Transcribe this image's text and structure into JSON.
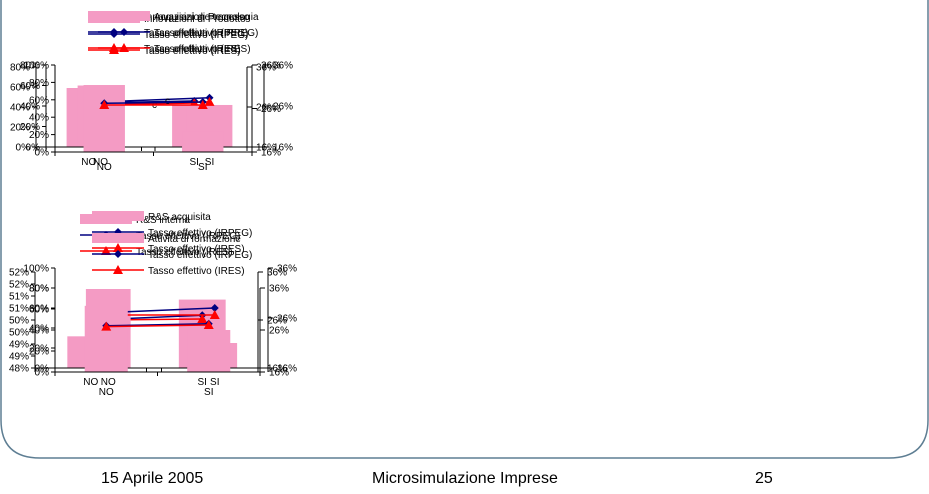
{
  "colors": {
    "bar": "#f49bc4",
    "irpeg": "#000080",
    "ires": "#ff0000",
    "frame": "#5e7e93"
  },
  "chart_data": [
    {
      "type": "bar",
      "categories": [
        "NO",
        "SI"
      ],
      "series": [
        {
          "name": "Innovazioni di Prodotto",
          "type": "bar",
          "axis": "left",
          "values": [
            0.59,
            0.42
          ]
        },
        {
          "name": "Tasso effettivo (IRPEG)",
          "type": "line",
          "axis": "right",
          "marker": "diamond",
          "values": [
            0.27,
            0.275
          ]
        },
        {
          "name": "Tasso effettivo (IRES)",
          "type": "line",
          "axis": "right",
          "marker": "triangle",
          "values": [
            0.264,
            0.27
          ]
        }
      ],
      "yleft": {
        "ylim": [
          0,
          0.8
        ],
        "ticks": [
          0,
          0.2,
          0.4,
          0.6,
          0.8
        ],
        "labels": [
          "0%",
          "20%",
          "40%",
          "60%",
          "80%"
        ]
      },
      "yright": {
        "ylim": [
          0.16,
          0.36
        ],
        "ticks": [
          0.16,
          0.26,
          0.36
        ],
        "labels": [
          "16%",
          "26%",
          "36%"
        ]
      },
      "annotation": "c"
    },
    {
      "type": "bar",
      "categories": [
        "NO",
        "SI"
      ],
      "series": [
        {
          "name": "Innovazioni di Processo",
          "type": "bar",
          "axis": "left",
          "values": [
            0.6,
            0.41
          ]
        },
        {
          "name": "Tasso effettivo (IRPEG)",
          "type": "line",
          "axis": "right",
          "marker": "diamond",
          "values": [
            0.27,
            0.28
          ]
        },
        {
          "name": "Tasso effettivo (IRES)",
          "type": "line",
          "axis": "right",
          "marker": "triangle",
          "values": [
            0.264,
            0.27
          ]
        }
      ],
      "yleft": {
        "ylim": [
          0,
          0.8
        ],
        "ticks": [
          0,
          0.2,
          0.4,
          0.6,
          0.8
        ],
        "labels": [
          "0%",
          "20%",
          "40%",
          "60%",
          "80%"
        ]
      },
      "yright": {
        "ylim": [
          0.16,
          0.36
        ],
        "ticks": [
          0.16,
          0.26,
          0.36
        ],
        "labels": [
          "16%",
          "26%",
          "36%"
        ]
      },
      "annotation": "c"
    },
    {
      "type": "bar",
      "categories": [
        "NO",
        "SI"
      ],
      "series": [
        {
          "name": "Acquisizione tecnologia",
          "type": "bar",
          "axis": "left",
          "values": [
            0.77,
            0.24
          ]
        },
        {
          "name": "Tasso effettivo (IRPEG)",
          "type": "line",
          "axis": "right",
          "marker": "diamond",
          "values": [
            0.272,
            0.275
          ]
        },
        {
          "name": "Tasso effettivo (IRES)",
          "type": "line",
          "axis": "right",
          "marker": "triangle",
          "values": [
            0.268,
            0.268
          ]
        }
      ],
      "yleft": {
        "ylim": [
          0,
          1
        ],
        "ticks": [
          0,
          0.2,
          0.4,
          0.6,
          0.8,
          1
        ],
        "labels": [
          "0%",
          "20%",
          "40%",
          "60%",
          "80%",
          "100%"
        ]
      },
      "yright": {
        "ylim": [
          0.16,
          0.36
        ],
        "ticks": [
          0.16,
          0.26,
          0.36
        ],
        "labels": [
          "16%",
          "26%",
          "36%"
        ]
      },
      "annotation": ""
    },
    {
      "type": "bar",
      "categories": [
        "NO",
        "SI"
      ],
      "series": [
        {
          "name": "R&S interna",
          "type": "bar",
          "axis": "left",
          "values": [
            0.4932,
            0.5085
          ]
        },
        {
          "name": "Tasso effettivo (IRPEG)",
          "type": "line",
          "axis": "right",
          "marker": "diamond",
          "values": [
            0.26,
            0.27
          ]
        },
        {
          "name": "Tasso effettivo (IRES)",
          "type": "line",
          "axis": "right",
          "marker": "triangle",
          "values": [
            0.26,
            0.262
          ]
        }
      ],
      "yleft": {
        "ylim": [
          0.48,
          0.52
        ],
        "ticks": [
          0.48,
          0.485,
          0.49,
          0.495,
          0.5,
          0.505,
          0.51,
          0.515,
          0.52
        ],
        "labels": [
          "48%",
          "49%",
          "49%",
          "50%",
          "50%",
          "51%",
          "51%",
          "52%",
          "52%"
        ]
      },
      "yright": {
        "ylim": [
          0.16,
          0.36
        ],
        "ticks": [
          0.16,
          0.26,
          0.36
        ],
        "labels": [
          "16%",
          "26%",
          "36%"
        ]
      },
      "annotation": ""
    },
    {
      "type": "bar",
      "categories": [
        "NO",
        "SI"
      ],
      "series": [
        {
          "name": "R&S acquisita",
          "type": "bar",
          "axis": "left",
          "values": [
            0.79,
            0.25
          ]
        },
        {
          "name": "Tasso effettivo (IRPEG)",
          "type": "line",
          "axis": "right",
          "marker": "diamond",
          "values": [
            0.271,
            0.28
          ]
        },
        {
          "name": "Tasso effettivo (IRES)",
          "type": "line",
          "axis": "right",
          "marker": "triangle",
          "values": [
            0.266,
            0.266
          ]
        }
      ],
      "yleft": {
        "ylim": [
          0,
          1
        ],
        "ticks": [
          0,
          0.2,
          0.4,
          0.6,
          0.8,
          1
        ],
        "labels": [
          "0%",
          "20%",
          "40%",
          "60%",
          "80%",
          "100%"
        ]
      },
      "yright": {
        "ylim": [
          0.16,
          0.36
        ],
        "ticks": [
          0.16,
          0.26,
          0.36
        ],
        "labels": [
          "16%",
          "26%",
          "36%"
        ]
      },
      "annotation": ""
    },
    {
      "type": "bar",
      "categories": [
        "NO",
        "SI"
      ],
      "series": [
        {
          "name": "Attività di formazione",
          "type": "bar",
          "axis": "left",
          "values": [
            0.63,
            0.4
          ]
        },
        {
          "name": "Tasso effettivo (IRPEG)",
          "type": "line",
          "axis": "right",
          "marker": "diamond",
          "values": [
            0.27,
            0.275
          ]
        },
        {
          "name": "Tasso effettivo (IRES)",
          "type": "line",
          "axis": "right",
          "marker": "triangle",
          "values": [
            0.268,
            0.272
          ]
        }
      ],
      "yleft": {
        "ylim": [
          0,
          0.8
        ],
        "ticks": [
          0,
          0.2,
          0.4,
          0.6,
          0.8
        ],
        "labels": [
          "0%",
          "20%",
          "40%",
          "60%",
          "80%"
        ]
      },
      "yright": {
        "ylim": [
          0.16,
          0.36
        ],
        "ticks": [
          0.16,
          0.26,
          0.36
        ],
        "labels": [
          "16%",
          "26%",
          "36%"
        ]
      },
      "annotation": ""
    }
  ],
  "footer": {
    "date": "15 Aprile 2005",
    "title": "Microsimulazione Imprese",
    "page": "25"
  }
}
